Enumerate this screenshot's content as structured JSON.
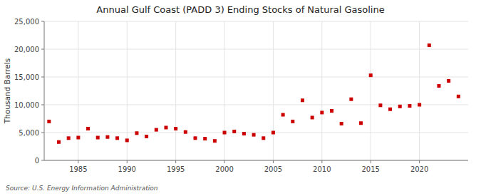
{
  "chart_data": {
    "type": "scatter",
    "title": "Annual Gulf Coast (PADD 3) Ending Stocks of Natural Gasoline",
    "ylabel": "Thousand Barrels",
    "annotations": [
      "Source: U.S. Energy Information Administration"
    ],
    "color": "#cc0000",
    "marker": "square",
    "grid": true,
    "xlim": [
      1981.5,
      2025
    ],
    "ylim": [
      0,
      25000
    ],
    "xticks": [
      1985,
      1990,
      1995,
      2000,
      2005,
      2010,
      2015,
      2020
    ],
    "yticks": [
      0,
      {
        "value": 5000,
        "label": "5,000"
      },
      {
        "value": 10000,
        "label": "10,000"
      },
      {
        "value": 15000,
        "label": "15,000"
      },
      {
        "value": 20000,
        "label": "20,000"
      },
      {
        "value": 25000,
        "label": "25,000"
      }
    ],
    "x": [
      1982,
      1983,
      1984,
      1985,
      1986,
      1987,
      1988,
      1989,
      1990,
      1991,
      1992,
      1993,
      1994,
      1995,
      1996,
      1997,
      1998,
      1999,
      2000,
      2001,
      2002,
      2003,
      2004,
      2005,
      2006,
      2007,
      2008,
      2009,
      2010,
      2011,
      2012,
      2013,
      2014,
      2015,
      2016,
      2017,
      2018,
      2019,
      2020,
      2021,
      2022,
      2023,
      2024
    ],
    "values": [
      7000,
      3300,
      4000,
      4100,
      5700,
      4100,
      4200,
      4000,
      3600,
      4900,
      4300,
      5500,
      5900,
      5700,
      5100,
      4000,
      3900,
      3500,
      5000,
      5200,
      4800,
      4600,
      4000,
      5000,
      8200,
      7000,
      10800,
      7700,
      8600,
      8900,
      6600,
      11000,
      6700,
      15300,
      9900,
      9200,
      9700,
      9800,
      10000,
      20700,
      13400,
      14300,
      11500
    ]
  }
}
